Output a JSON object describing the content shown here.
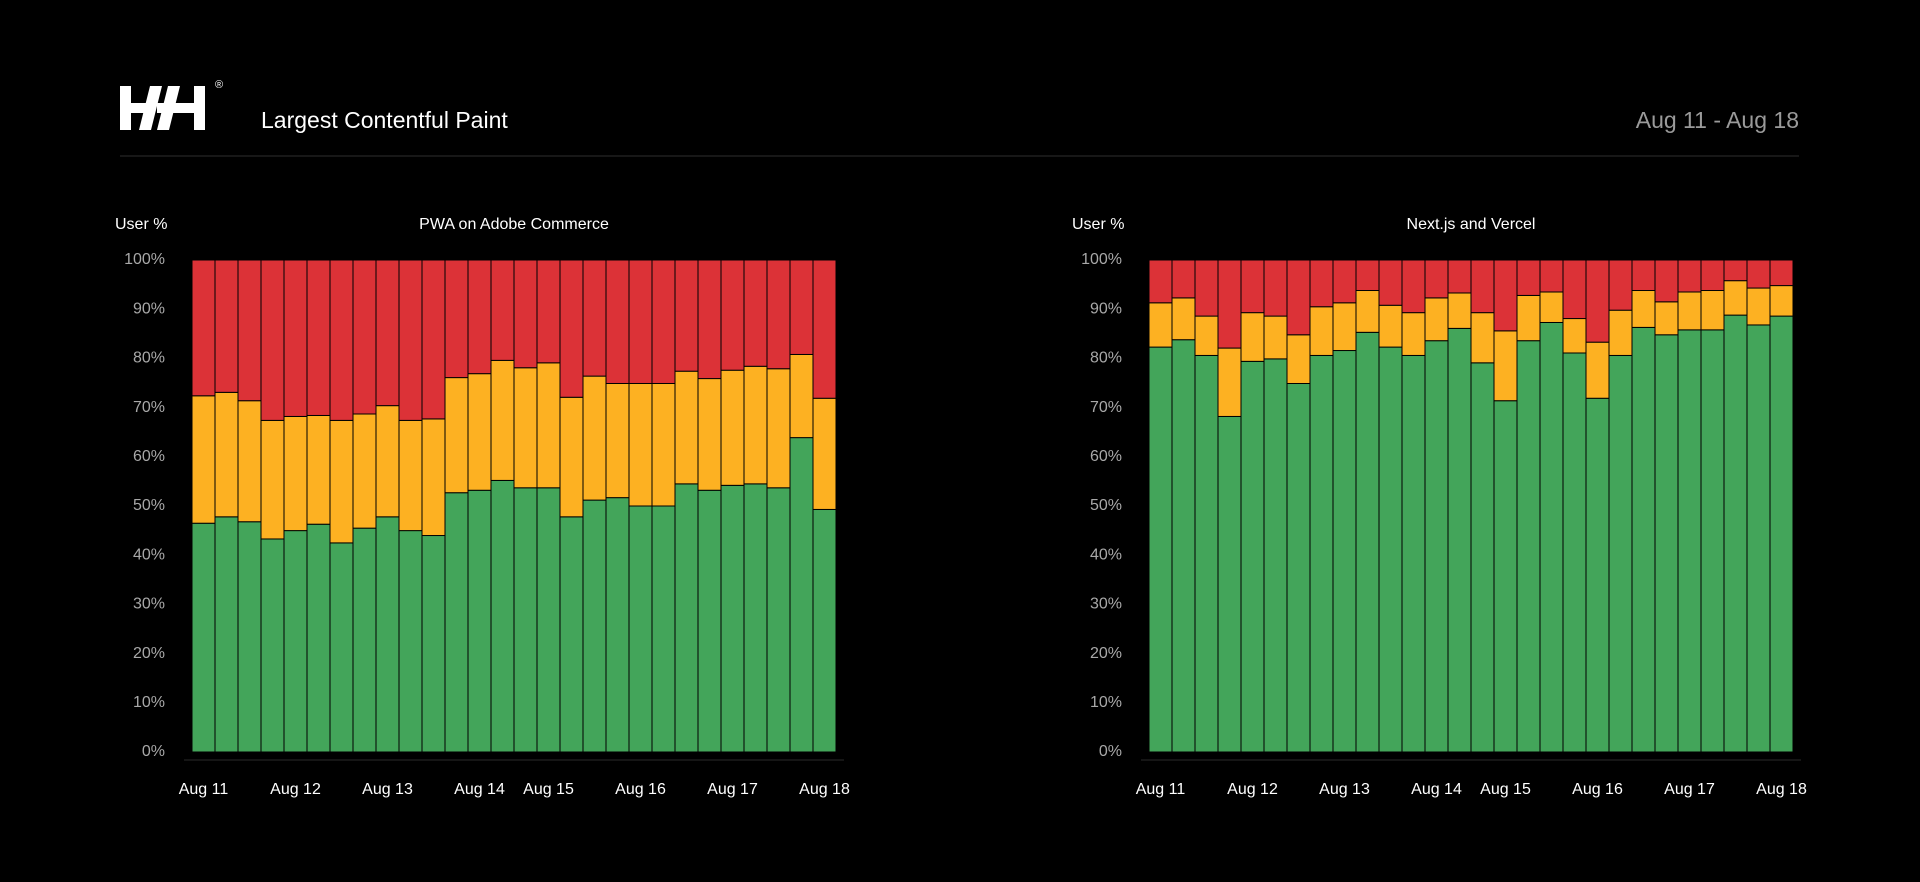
{
  "header": {
    "title": "Largest Contentful Paint",
    "date_range": "Aug 11 - Aug 18",
    "logo_mark": "®"
  },
  "chart_data": [
    {
      "type": "bar",
      "stacked": true,
      "title": "PWA on Adobe Commerce",
      "y_label": "User %",
      "categories": [
        "Aug 11",
        null,
        null,
        null,
        "Aug 12",
        null,
        null,
        null,
        "Aug 13",
        null,
        null,
        null,
        "Aug 14",
        null,
        null,
        "Aug 15",
        null,
        null,
        null,
        "Aug 16",
        null,
        null,
        null,
        "Aug 17",
        null,
        null,
        null,
        "Aug 18"
      ],
      "ylim": [
        0,
        100
      ],
      "yticks": [
        {
          "value": 0,
          "label": "0%"
        },
        {
          "value": 10,
          "label": "10%"
        },
        {
          "value": 20,
          "label": "20%"
        },
        {
          "value": 30,
          "label": "30%"
        },
        {
          "value": 40,
          "label": "40%"
        },
        {
          "value": 50,
          "label": "50%"
        },
        {
          "value": 60,
          "label": "60%"
        },
        {
          "value": 70,
          "label": "70%"
        },
        {
          "value": 80,
          "label": "80%"
        },
        {
          "value": 90,
          "label": "90%"
        },
        {
          "value": 100,
          "label": "100%"
        }
      ],
      "series": [
        {
          "color": "#43a55a",
          "values": [
            46.5,
            47.8,
            46.8,
            43.3,
            45,
            46.3,
            42.5,
            45.5,
            47.8,
            45,
            44,
            52.7,
            53.2,
            55.2,
            53.7,
            53.7,
            47.8,
            51.2,
            51.7,
            50,
            50,
            54.5,
            53.2,
            54.2,
            54.5,
            53.7,
            63.9,
            49.3
          ]
        },
        {
          "color": "#fdb122",
          "values": [
            25.9,
            25.3,
            24.6,
            24.1,
            23.2,
            22.1,
            24.9,
            23.2,
            22.6,
            22.4,
            23.7,
            23.4,
            23.7,
            24.4,
            24.4,
            25.4,
            24.3,
            25.2,
            23.2,
            24.9,
            24.9,
            22.9,
            22.7,
            23.4,
            23.9,
            24.2,
            16.9,
            22.6
          ]
        },
        {
          "color": "#dc3237",
          "values": [
            27.6,
            26.9,
            28.6,
            32.6,
            31.8,
            31.6,
            32.6,
            31.3,
            29.6,
            32.6,
            32.3,
            23.9,
            23.1,
            20.4,
            21.9,
            20.9,
            27.9,
            23.6,
            25.1,
            25.1,
            25.1,
            22.6,
            24.1,
            22.4,
            21.6,
            22.1,
            19.2,
            28.1
          ]
        }
      ]
    },
    {
      "type": "bar",
      "stacked": true,
      "title": "Next.js and Vercel",
      "y_label": "User %",
      "categories": [
        "Aug 11",
        null,
        null,
        null,
        "Aug 12",
        null,
        null,
        null,
        "Aug 13",
        null,
        null,
        null,
        "Aug 14",
        null,
        null,
        "Aug 15",
        null,
        null,
        null,
        "Aug 16",
        null,
        null,
        null,
        "Aug 17",
        null,
        null,
        null,
        "Aug 18"
      ],
      "ylim": [
        0,
        100
      ],
      "yticks": [
        {
          "value": 0,
          "label": "0%"
        },
        {
          "value": 10,
          "label": "10%"
        },
        {
          "value": 20,
          "label": "20%"
        },
        {
          "value": 30,
          "label": "30%"
        },
        {
          "value": 40,
          "label": "40%"
        },
        {
          "value": 50,
          "label": "50%"
        },
        {
          "value": 60,
          "label": "60%"
        },
        {
          "value": 70,
          "label": "70%"
        },
        {
          "value": 80,
          "label": "80%"
        },
        {
          "value": 90,
          "label": "90%"
        },
        {
          "value": 100,
          "label": "100%"
        }
      ],
      "series": [
        {
          "color": "#43a55a",
          "values": [
            82.3,
            83.8,
            80.6,
            68.2,
            79.4,
            79.9,
            74.9,
            80.6,
            81.6,
            85.3,
            82.3,
            80.6,
            83.6,
            86.1,
            79.1,
            71.4,
            83.6,
            87.3,
            81.1,
            71.9,
            80.6,
            86.3,
            84.8,
            85.8,
            85.8,
            88.8,
            86.8,
            88.6
          ]
        },
        {
          "color": "#fdb122",
          "values": [
            9.0,
            8.5,
            8.0,
            13.9,
            9.9,
            8.7,
            9.9,
            9.9,
            9.7,
            8.5,
            8.5,
            8.7,
            8.7,
            7.2,
            10.2,
            14.2,
            9.2,
            6.2,
            7.0,
            11.4,
            9.2,
            7.5,
            6.7,
            7.7,
            8.0,
            7.0,
            7.5,
            6.2
          ]
        },
        {
          "color": "#dc3237",
          "values": [
            8.7,
            7.7,
            11.4,
            17.9,
            10.7,
            11.4,
            15.2,
            9.5,
            8.7,
            6.2,
            9.2,
            10.7,
            7.7,
            6.7,
            10.7,
            14.4,
            7.2,
            6.5,
            11.9,
            16.7,
            10.2,
            6.2,
            8.5,
            6.5,
            6.2,
            4.2,
            5.7,
            5.2
          ]
        }
      ]
    }
  ]
}
